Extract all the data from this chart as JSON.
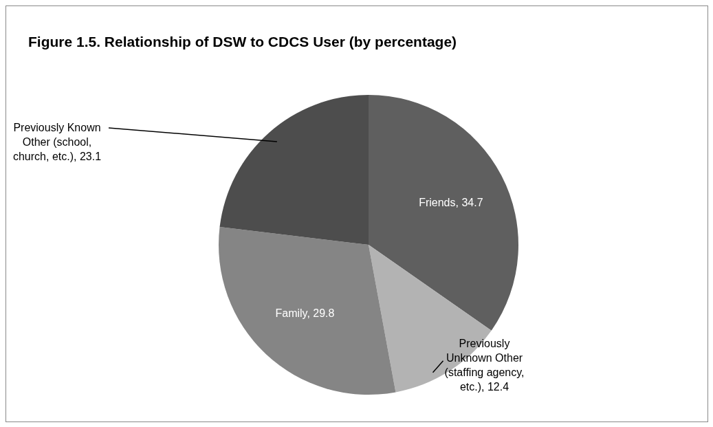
{
  "chart_data": {
    "type": "pie",
    "title": "Figure 1.5. Relationship of DSW to CDCS User (by percentage)",
    "categories": [
      "Friends",
      "Previously Unknown Other (staffing agency, etc.)",
      "Family",
      "Previously Known Other (school, church, etc.)"
    ],
    "values": [
      34.7,
      12.4,
      29.8,
      23.1
    ],
    "colors": [
      "#5f5f5f",
      "#b3b3b3",
      "#858585",
      "#4d4d4d"
    ],
    "value_labels": [
      ", 34.7",
      ", 12.4",
      ", 29.8",
      ", 23.1"
    ]
  }
}
